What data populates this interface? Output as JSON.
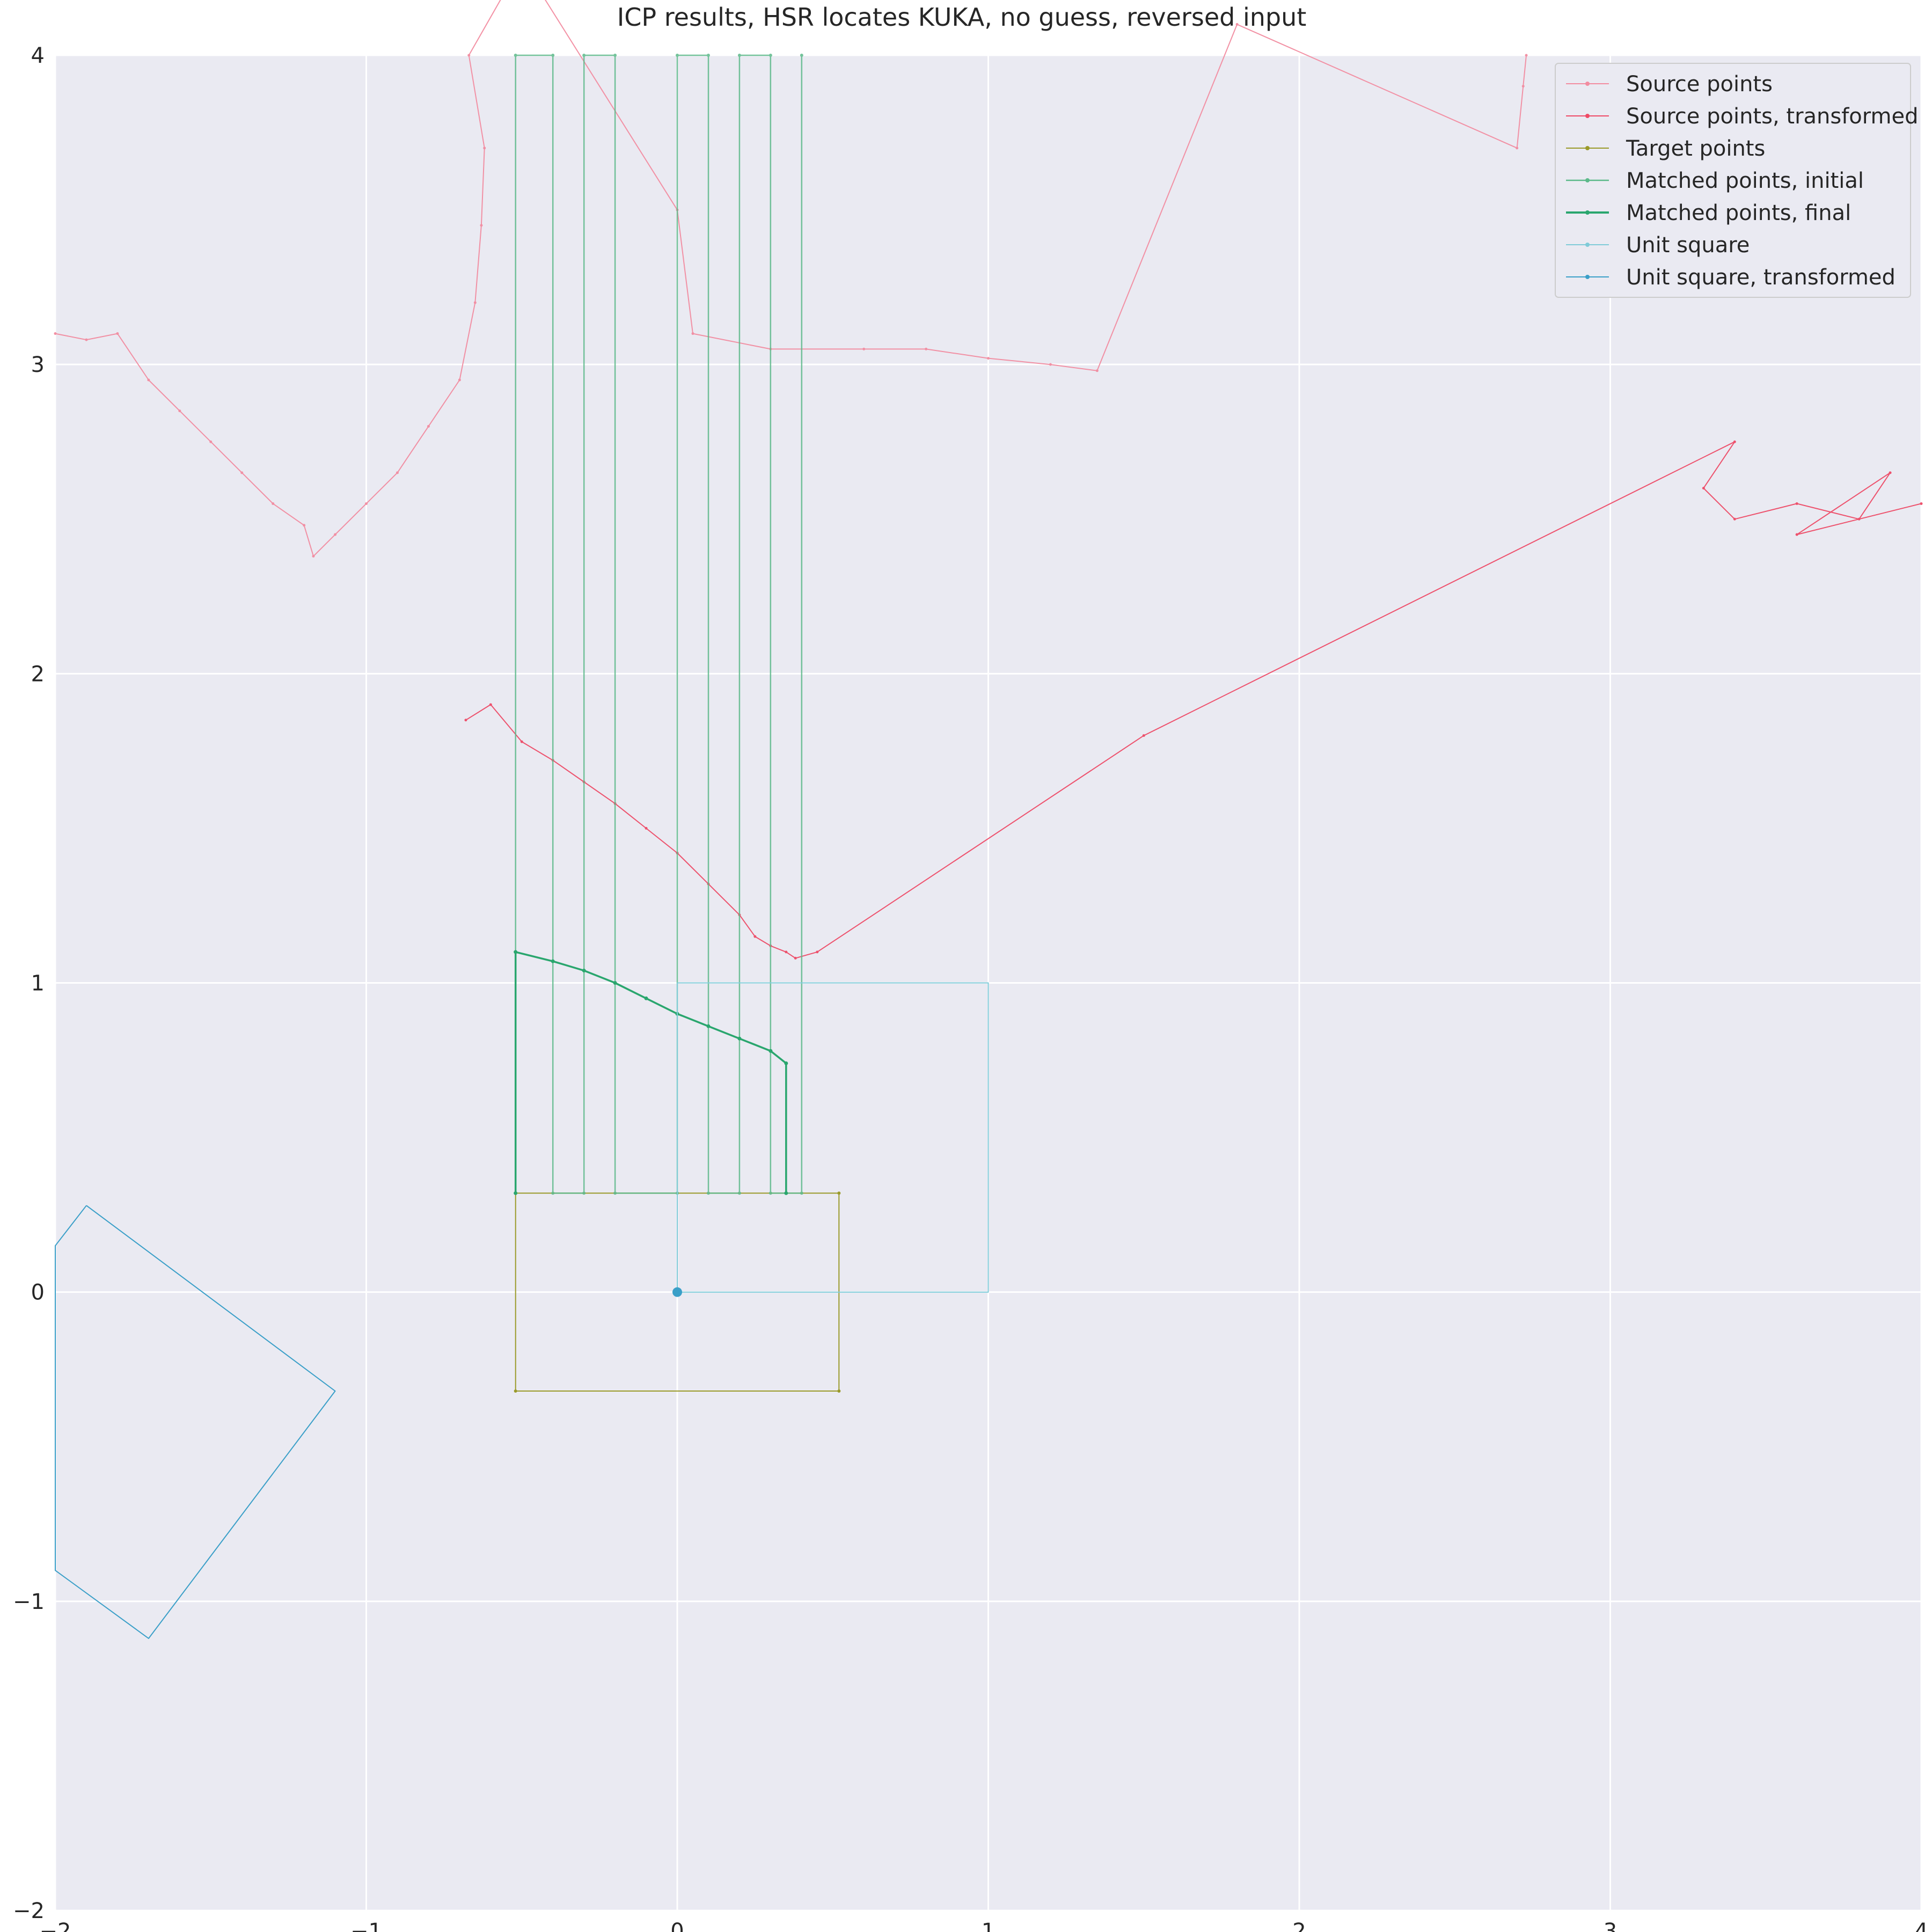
{
  "chart_data": {
    "type": "line",
    "title": "ICP results, HSR locates KUKA, no guess, reversed input",
    "xlabel": "",
    "ylabel": "",
    "xlim": [
      -2,
      4
    ],
    "ylim": [
      -2,
      4
    ],
    "xticks": [
      -2,
      -1,
      0,
      1,
      2,
      3,
      4
    ],
    "yticks": [
      -2,
      -1,
      0,
      1,
      2,
      3,
      4
    ],
    "xtick_labels": [
      "−2",
      "−1",
      "0",
      "1",
      "2",
      "3",
      "4"
    ],
    "ytick_labels": [
      "−2",
      "−1",
      "0",
      "1",
      "2",
      "3",
      "4"
    ],
    "grid": true,
    "background": "#eaeaf2",
    "legend_position": "top-right",
    "colors": {
      "source": "#f28ca0",
      "source_transformed": "#ee4a66",
      "target": "#9a9a2a",
      "matched_initial": "#5cb98a",
      "matched_final": "#2aa66e",
      "unit_square": "#7fcbd8",
      "unit_square_transformed": "#3a9fc8"
    },
    "legend": [
      {
        "label": "Source points",
        "color": "#f28ca0",
        "width": 2
      },
      {
        "label": "Source points, transformed",
        "color": "#ee4a66",
        "width": 2
      },
      {
        "label": "Target points",
        "color": "#9a9a2a",
        "width": 2
      },
      {
        "label": "Matched points, initial",
        "color": "#5cb98a",
        "width": 2.5
      },
      {
        "label": "Matched points, final",
        "color": "#2aa66e",
        "width": 4
      },
      {
        "label": "Unit square",
        "color": "#7fcbd8",
        "width": 2
      },
      {
        "label": "Unit square, transformed",
        "color": "#3a9fc8",
        "width": 2
      }
    ],
    "series": [
      {
        "name": "Source points",
        "points": [
          [
            -2,
            3.1
          ],
          [
            -1.9,
            3.08
          ],
          [
            -1.8,
            3.1
          ],
          [
            -1.7,
            2.95
          ],
          [
            -1.6,
            2.85
          ],
          [
            -1.5,
            2.75
          ],
          [
            -1.4,
            2.65
          ],
          [
            -1.3,
            2.55
          ],
          [
            -1.2,
            2.48
          ],
          [
            -1.17,
            2.38
          ],
          [
            -1.1,
            2.45
          ],
          [
            -1.0,
            2.55
          ],
          [
            -0.9,
            2.65
          ],
          [
            -0.8,
            2.8
          ],
          [
            -0.7,
            2.95
          ],
          [
            -0.65,
            3.2
          ],
          [
            -0.63,
            3.45
          ],
          [
            -0.62,
            3.7
          ],
          [
            -0.67,
            4.0
          ],
          [
            -0.5,
            4.3
          ],
          [
            0.0,
            3.5
          ],
          [
            0.05,
            3.1
          ],
          [
            0.3,
            3.05
          ],
          [
            0.6,
            3.05
          ],
          [
            0.8,
            3.05
          ],
          [
            1.0,
            3.02
          ],
          [
            1.2,
            3.0
          ],
          [
            1.35,
            2.98
          ],
          [
            1.8,
            4.1
          ],
          [
            2.7,
            3.7
          ],
          [
            2.72,
            3.9
          ],
          [
            2.73,
            4.0
          ]
        ]
      },
      {
        "name": "Source points, transformed",
        "points": [
          [
            -0.68,
            1.85
          ],
          [
            -0.6,
            1.9
          ],
          [
            -0.5,
            1.78
          ],
          [
            -0.4,
            1.72
          ],
          [
            -0.3,
            1.65
          ],
          [
            -0.2,
            1.58
          ],
          [
            -0.1,
            1.5
          ],
          [
            0.0,
            1.42
          ],
          [
            0.1,
            1.32
          ],
          [
            0.2,
            1.22
          ],
          [
            0.25,
            1.15
          ],
          [
            0.3,
            1.12
          ],
          [
            0.35,
            1.1
          ],
          [
            0.38,
            1.08
          ],
          [
            0.45,
            1.1
          ],
          [
            1.5,
            1.8
          ],
          [
            3.4,
            2.75
          ],
          [
            3.3,
            2.6
          ],
          [
            3.4,
            2.5
          ],
          [
            3.6,
            2.55
          ],
          [
            3.8,
            2.5
          ],
          [
            3.9,
            2.65
          ],
          [
            3.6,
            2.45
          ],
          [
            4.0,
            2.55
          ]
        ]
      },
      {
        "name": "Target points",
        "points": [
          [
            -0.52,
            0.32
          ],
          [
            0.52,
            0.32
          ],
          [
            0.52,
            -0.32
          ],
          [
            -0.52,
            -0.32
          ],
          [
            -0.52,
            0.32
          ]
        ]
      },
      {
        "name": "Matched points, initial",
        "points": [
          [
            -0.52,
            0.32
          ],
          [
            -0.52,
            4.0
          ],
          [
            -0.4,
            4.0
          ],
          [
            -0.4,
            0.32
          ],
          [
            -0.3,
            0.32
          ],
          [
            -0.3,
            4.0
          ],
          [
            -0.2,
            4.0
          ],
          [
            -0.2,
            0.32
          ],
          [
            0.0,
            0.32
          ],
          [
            0.0,
            4.0
          ],
          [
            0.1,
            4.0
          ],
          [
            0.1,
            0.32
          ],
          [
            0.2,
            0.32
          ],
          [
            0.2,
            4.0
          ],
          [
            0.3,
            4.0
          ],
          [
            0.3,
            0.32
          ],
          [
            0.4,
            0.32
          ],
          [
            0.4,
            4.0
          ]
        ]
      },
      {
        "name": "Matched points, final",
        "points": [
          [
            -0.52,
            0.32
          ],
          [
            -0.52,
            1.1
          ],
          [
            -0.4,
            1.07
          ],
          [
            -0.3,
            1.04
          ],
          [
            -0.2,
            1.0
          ],
          [
            -0.1,
            0.95
          ],
          [
            0.0,
            0.9
          ],
          [
            0.1,
            0.86
          ],
          [
            0.2,
            0.82
          ],
          [
            0.3,
            0.78
          ],
          [
            0.35,
            0.74
          ],
          [
            0.35,
            0.32
          ]
        ]
      },
      {
        "name": "Unit square",
        "points": [
          [
            0,
            0
          ],
          [
            1,
            0
          ],
          [
            1,
            1
          ],
          [
            0,
            1
          ],
          [
            0,
            0
          ]
        ]
      },
      {
        "name": "Unit square, transformed",
        "points": [
          [
            -1.9,
            0.28
          ],
          [
            -1.1,
            -0.32
          ],
          [
            -1.7,
            -1.12
          ],
          [
            -2.0,
            -0.9
          ],
          [
            -2.0,
            0.15
          ],
          [
            -1.9,
            0.28
          ]
        ]
      }
    ]
  }
}
